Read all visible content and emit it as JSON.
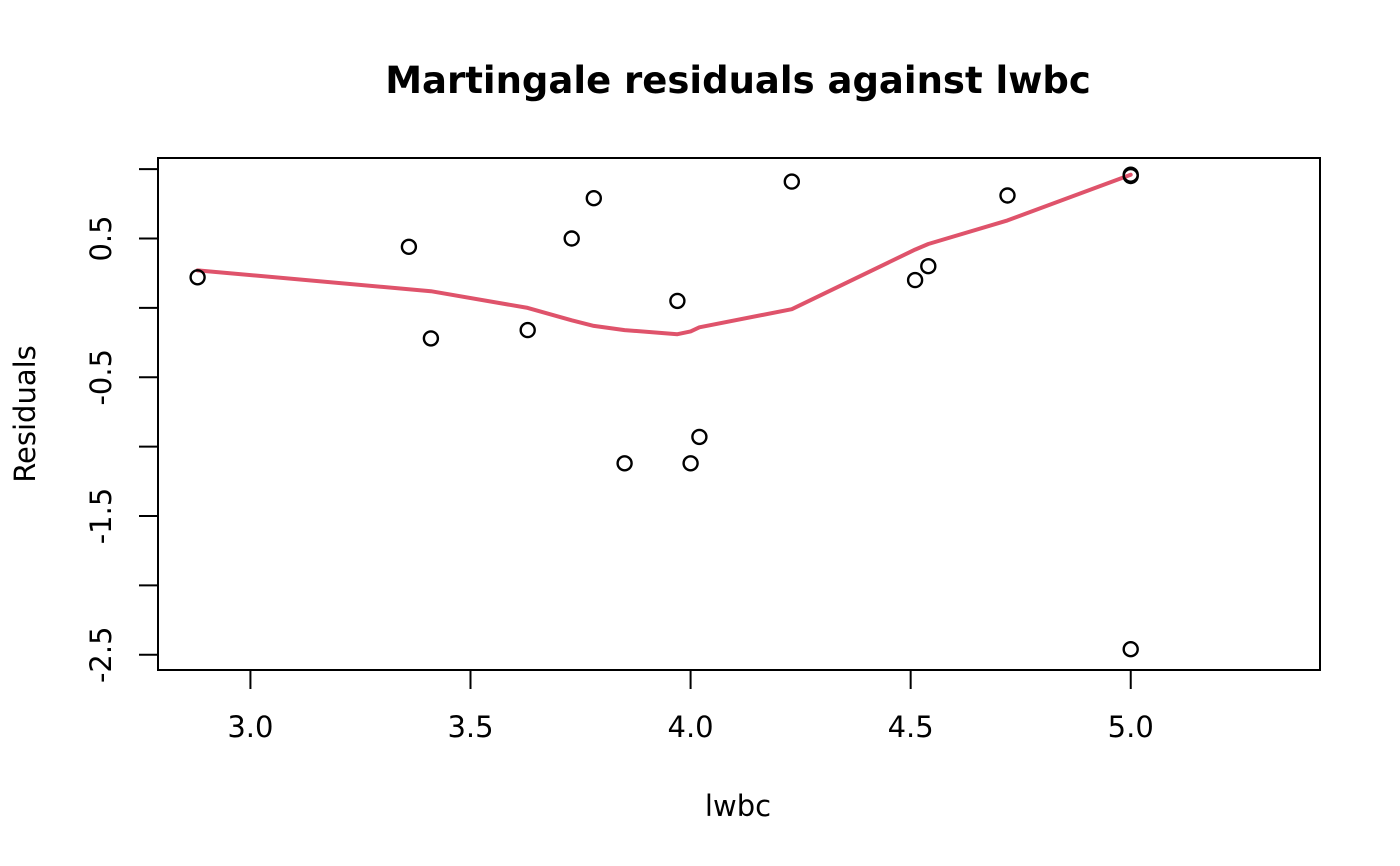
{
  "chart_data": {
    "type": "scatter",
    "title": "Martingale residuals against lwbc",
    "xlabel": "lwbc",
    "ylabel": "Residuals",
    "xlim": [
      2.79,
      5.43
    ],
    "ylim": [
      -2.61,
      1.08
    ],
    "x_ticks": [
      3.0,
      3.5,
      4.0,
      4.5,
      5.0
    ],
    "x_tick_labels": [
      "3.0",
      "3.5",
      "4.0",
      "4.5",
      "5.0"
    ],
    "y_ticks": [
      -2.5,
      -2.0,
      -1.5,
      -1.0,
      -0.5,
      0.0,
      0.5,
      1.0
    ],
    "y_tick_labels": [
      "-2.5",
      "",
      "-1.5",
      "",
      "-0.5",
      "",
      "0.5",
      ""
    ],
    "grid": false,
    "points": [
      {
        "x": 2.88,
        "y": 0.22
      },
      {
        "x": 3.36,
        "y": 0.44
      },
      {
        "x": 3.41,
        "y": -0.22
      },
      {
        "x": 3.63,
        "y": -0.16
      },
      {
        "x": 3.73,
        "y": 0.5
      },
      {
        "x": 3.78,
        "y": 0.79
      },
      {
        "x": 3.85,
        "y": -1.12
      },
      {
        "x": 3.97,
        "y": 0.05
      },
      {
        "x": 4.0,
        "y": -1.12
      },
      {
        "x": 4.02,
        "y": -0.93
      },
      {
        "x": 4.23,
        "y": 0.91
      },
      {
        "x": 4.51,
        "y": 0.2
      },
      {
        "x": 4.54,
        "y": 0.3
      },
      {
        "x": 4.72,
        "y": 0.81
      },
      {
        "x": 5.0,
        "y": 0.95
      },
      {
        "x": 5.0,
        "y": 0.96
      },
      {
        "x": 5.0,
        "y": -2.46
      }
    ],
    "smooth_line": {
      "x": [
        2.88,
        3.41,
        3.63,
        3.73,
        3.78,
        3.85,
        3.97,
        4.0,
        4.02,
        4.23,
        4.51,
        4.54,
        4.72,
        5.0
      ],
      "y": [
        0.27,
        0.12,
        0.0,
        -0.09,
        -0.13,
        -0.16,
        -0.19,
        -0.17,
        -0.14,
        -0.01,
        0.42,
        0.46,
        0.63,
        0.96
      ]
    },
    "colors": {
      "points": "#000000",
      "smooth_line": "#DF536B"
    }
  }
}
